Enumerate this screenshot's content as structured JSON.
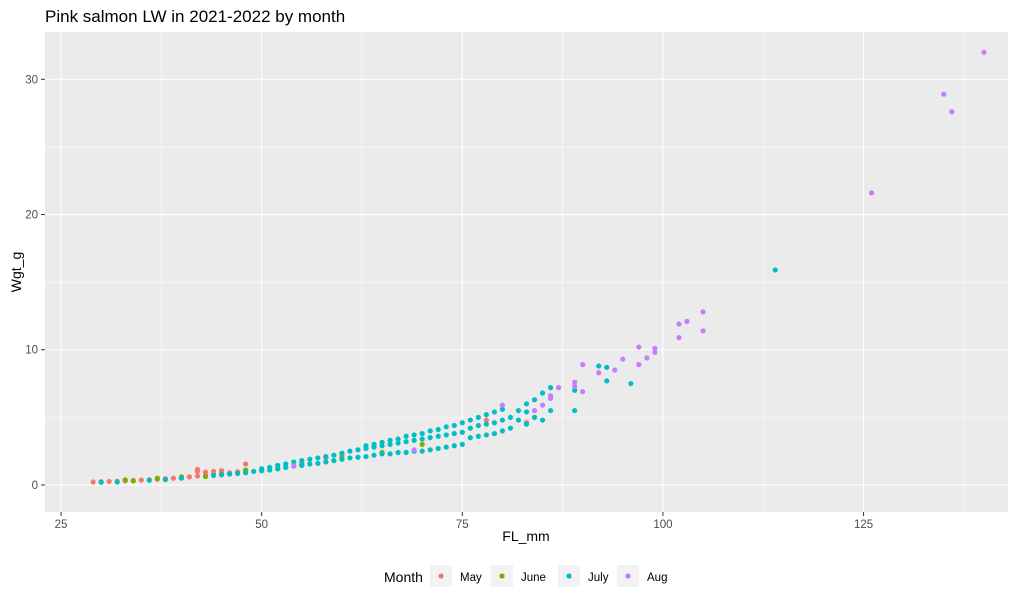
{
  "chart_data": {
    "type": "scatter",
    "title": "Pink salmon LW in 2021-2022 by month",
    "xlabel": "FL_mm",
    "ylabel": "Wgt_g",
    "xlim": [
      23,
      143
    ],
    "ylim": [
      -2,
      33.5
    ],
    "x_ticks": [
      25,
      50,
      75,
      100,
      125
    ],
    "y_ticks": [
      0,
      10,
      20,
      30
    ],
    "grid": true,
    "legend": {
      "title": "Month",
      "position": "bottom"
    },
    "series": [
      {
        "name": "May",
        "color": "#F8766D",
        "points": [
          [
            29,
            0.22
          ],
          [
            30,
            0.24
          ],
          [
            31,
            0.26
          ],
          [
            32,
            0.28
          ],
          [
            33,
            0.3
          ],
          [
            34,
            0.33
          ],
          [
            35,
            0.36
          ],
          [
            36,
            0.39
          ],
          [
            37,
            0.42
          ],
          [
            38,
            0.46
          ],
          [
            39,
            0.5
          ],
          [
            40,
            0.55
          ],
          [
            41,
            0.6
          ],
          [
            42,
            0.66
          ],
          [
            42,
            1.0
          ],
          [
            42,
            1.15
          ],
          [
            43,
            0.72
          ],
          [
            43,
            0.95
          ],
          [
            44,
            0.78
          ],
          [
            44,
            1.0
          ],
          [
            45,
            0.84
          ],
          [
            45,
            1.05
          ],
          [
            46,
            0.9
          ],
          [
            47,
            0.98
          ],
          [
            48,
            1.06
          ],
          [
            48,
            1.55
          ],
          [
            55,
            1.6
          ],
          [
            58,
            2.0
          ],
          [
            60,
            2.2
          ],
          [
            78,
            4.8
          ],
          [
            83,
            4.6
          ]
        ]
      },
      {
        "name": "June",
        "color": "#7CAE00",
        "points": [
          [
            33,
            0.38
          ],
          [
            34,
            0.3
          ],
          [
            37,
            0.5
          ],
          [
            40,
            0.6
          ],
          [
            43,
            0.62
          ],
          [
            45,
            0.8
          ],
          [
            48,
            1.1
          ],
          [
            52,
            1.2
          ],
          [
            55,
            1.5
          ],
          [
            60,
            2.0
          ],
          [
            65,
            2.4
          ],
          [
            70,
            3.0
          ]
        ]
      },
      {
        "name": "July",
        "color": "#00BFC4",
        "points": [
          [
            30,
            0.2
          ],
          [
            32,
            0.22
          ],
          [
            36,
            0.35
          ],
          [
            38,
            0.4
          ],
          [
            40,
            0.5
          ],
          [
            44,
            0.7
          ],
          [
            45,
            0.75
          ],
          [
            46,
            0.8
          ],
          [
            47,
            0.85
          ],
          [
            48,
            0.9
          ],
          [
            49,
            1.0
          ],
          [
            50,
            1.05
          ],
          [
            50,
            1.2
          ],
          [
            51,
            1.1
          ],
          [
            51,
            1.3
          ],
          [
            52,
            1.2
          ],
          [
            52,
            1.45
          ],
          [
            53,
            1.3
          ],
          [
            53,
            1.55
          ],
          [
            54,
            1.4
          ],
          [
            54,
            1.7
          ],
          [
            55,
            1.45
          ],
          [
            55,
            1.8
          ],
          [
            56,
            1.55
          ],
          [
            56,
            1.9
          ],
          [
            57,
            1.6
          ],
          [
            57,
            2.0
          ],
          [
            58,
            1.7
          ],
          [
            58,
            2.1
          ],
          [
            59,
            1.8
          ],
          [
            59,
            2.2
          ],
          [
            60,
            1.9
          ],
          [
            60,
            2.35
          ],
          [
            61,
            2.0
          ],
          [
            61,
            2.5
          ],
          [
            62,
            2.05
          ],
          [
            62,
            2.6
          ],
          [
            63,
            2.1
          ],
          [
            63,
            2.7
          ],
          [
            63,
            2.9
          ],
          [
            64,
            2.2
          ],
          [
            64,
            2.8
          ],
          [
            64,
            3.0
          ],
          [
            65,
            2.3
          ],
          [
            65,
            2.9
          ],
          [
            65,
            3.15
          ],
          [
            66,
            2.3
          ],
          [
            66,
            3.0
          ],
          [
            66,
            3.3
          ],
          [
            67,
            2.4
          ],
          [
            67,
            3.1
          ],
          [
            67,
            3.4
          ],
          [
            68,
            2.4
          ],
          [
            68,
            3.2
          ],
          [
            68,
            3.6
          ],
          [
            69,
            2.5
          ],
          [
            69,
            3.3
          ],
          [
            69,
            3.7
          ],
          [
            70,
            2.5
          ],
          [
            70,
            3.4
          ],
          [
            70,
            3.8
          ],
          [
            71,
            2.6
          ],
          [
            71,
            3.5
          ],
          [
            71,
            4.0
          ],
          [
            72,
            2.7
          ],
          [
            72,
            3.6
          ],
          [
            72,
            4.1
          ],
          [
            73,
            2.8
          ],
          [
            73,
            3.7
          ],
          [
            73,
            4.3
          ],
          [
            74,
            2.9
          ],
          [
            74,
            3.8
          ],
          [
            74,
            4.4
          ],
          [
            75,
            3.0
          ],
          [
            75,
            3.9
          ],
          [
            75,
            4.6
          ],
          [
            76,
            3.5
          ],
          [
            76,
            4.2
          ],
          [
            76,
            4.8
          ],
          [
            77,
            3.6
          ],
          [
            77,
            4.4
          ],
          [
            77,
            5.0
          ],
          [
            78,
            3.7
          ],
          [
            78,
            4.5
          ],
          [
            78,
            5.2
          ],
          [
            79,
            3.8
          ],
          [
            79,
            4.6
          ],
          [
            79,
            5.4
          ],
          [
            80,
            4.0
          ],
          [
            80,
            4.8
          ],
          [
            80,
            5.6
          ],
          [
            81,
            4.2
          ],
          [
            81,
            5.0
          ],
          [
            82,
            4.8
          ],
          [
            82,
            5.5
          ],
          [
            83,
            4.5
          ],
          [
            83,
            5.4
          ],
          [
            83,
            6.0
          ],
          [
            84,
            5.0
          ],
          [
            84,
            6.3
          ],
          [
            85,
            4.8
          ],
          [
            85,
            6.8
          ],
          [
            86,
            5.5
          ],
          [
            86,
            7.2
          ],
          [
            89,
            5.5
          ],
          [
            89,
            7.0
          ],
          [
            92,
            8.8
          ],
          [
            93,
            8.7
          ],
          [
            93,
            7.7
          ],
          [
            96,
            7.5
          ],
          [
            114,
            15.9
          ]
        ]
      },
      {
        "name": "Aug",
        "color": "#C77CFF",
        "points": [
          [
            54,
            1.4
          ],
          [
            69,
            2.6
          ],
          [
            80,
            5.9
          ],
          [
            84,
            5.5
          ],
          [
            85,
            5.9
          ],
          [
            86,
            6.4
          ],
          [
            86,
            6.6
          ],
          [
            87,
            7.2
          ],
          [
            89,
            7.6
          ],
          [
            89,
            7.3
          ],
          [
            90,
            8.9
          ],
          [
            90,
            6.9
          ],
          [
            92,
            8.3
          ],
          [
            94,
            8.5
          ],
          [
            95,
            9.3
          ],
          [
            97,
            10.2
          ],
          [
            97,
            8.9
          ],
          [
            98,
            9.4
          ],
          [
            99,
            9.8
          ],
          [
            99,
            10.1
          ],
          [
            102,
            11.9
          ],
          [
            102,
            10.9
          ],
          [
            103,
            12.1
          ],
          [
            105,
            12.8
          ],
          [
            105,
            11.4
          ],
          [
            126,
            21.6
          ],
          [
            135,
            28.9
          ],
          [
            136,
            27.6
          ],
          [
            140,
            32.0
          ]
        ]
      }
    ]
  }
}
